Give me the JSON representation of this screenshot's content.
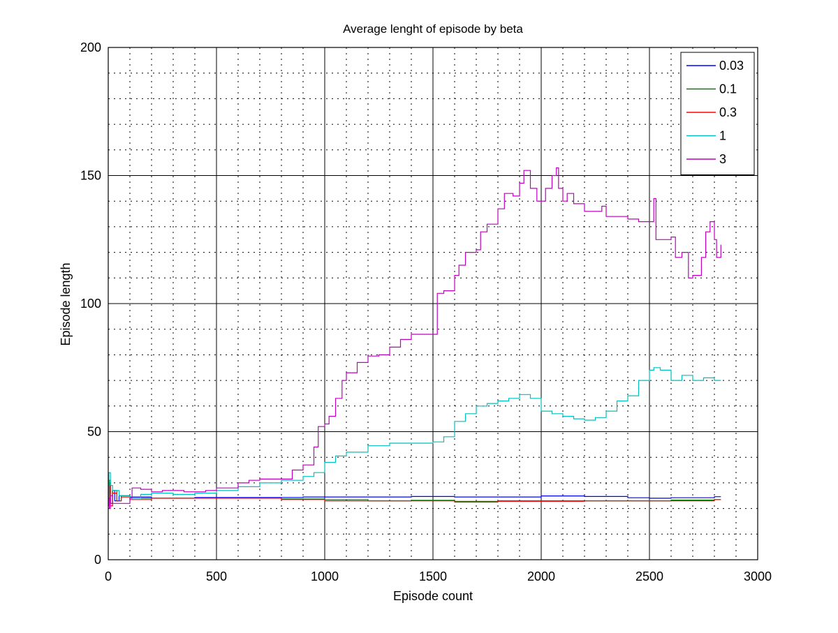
{
  "chart_data": {
    "type": "line",
    "title": "Average lenght of episode by beta",
    "xlabel": "Episode count",
    "ylabel": "Episode length",
    "xlim": [
      0,
      3000
    ],
    "ylim": [
      0,
      200
    ],
    "x_ticks": [
      0,
      500,
      1000,
      1500,
      2000,
      2500,
      3000
    ],
    "y_ticks": [
      0,
      50,
      100,
      150,
      200
    ],
    "x_tick_labels": [
      "0",
      "500",
      "1000",
      "1500",
      "2000",
      "2500",
      "3000"
    ],
    "y_tick_labels": [
      "0",
      "50",
      "100",
      "150",
      "200"
    ],
    "grid": true,
    "legend_position": "top-right",
    "series": [
      {
        "name": "0.03",
        "color": "#0000ff",
        "points": [
          [
            0,
            23
          ],
          [
            5,
            30
          ],
          [
            10,
            22
          ],
          [
            20,
            27
          ],
          [
            30,
            23
          ],
          [
            50,
            25
          ],
          [
            100,
            24.5
          ],
          [
            200,
            24
          ],
          [
            400,
            24.3
          ],
          [
            600,
            24.3
          ],
          [
            900,
            24.5
          ],
          [
            1200,
            24.5
          ],
          [
            1400,
            24.7
          ],
          [
            1600,
            24.5
          ],
          [
            1800,
            24.5
          ],
          [
            2000,
            24.9
          ],
          [
            2200,
            24.7
          ],
          [
            2400,
            24.2
          ],
          [
            2500,
            24
          ],
          [
            2600,
            24.2
          ],
          [
            2800,
            24.6
          ],
          [
            2830,
            24.6
          ]
        ]
      },
      {
        "name": "0.1",
        "color": "#008000",
        "points": [
          [
            0,
            26
          ],
          [
            5,
            31
          ],
          [
            10,
            22
          ],
          [
            20,
            27
          ],
          [
            40,
            23
          ],
          [
            60,
            25
          ],
          [
            100,
            24
          ],
          [
            200,
            24
          ],
          [
            400,
            24
          ],
          [
            600,
            24
          ],
          [
            800,
            23.7
          ],
          [
            1000,
            23.5
          ],
          [
            1100,
            23.5
          ],
          [
            1200,
            23
          ],
          [
            1400,
            23.2
          ],
          [
            1600,
            22.8
          ],
          [
            1800,
            23
          ],
          [
            2000,
            23
          ],
          [
            2200,
            23
          ],
          [
            2400,
            23
          ],
          [
            2600,
            23.3
          ],
          [
            2800,
            23.5
          ],
          [
            2830,
            23.5
          ]
        ]
      },
      {
        "name": "0.3",
        "color": "#ff0000",
        "points": [
          [
            0,
            22
          ],
          [
            5,
            29
          ],
          [
            10,
            21
          ],
          [
            20,
            26
          ],
          [
            40,
            23
          ],
          [
            60,
            24.5
          ],
          [
            100,
            23.5
          ],
          [
            200,
            24
          ],
          [
            400,
            24
          ],
          [
            600,
            24
          ],
          [
            800,
            23.5
          ],
          [
            1000,
            23
          ],
          [
            1200,
            23
          ],
          [
            1400,
            23
          ],
          [
            1600,
            22.5
          ],
          [
            1800,
            22.8
          ],
          [
            2000,
            22.8
          ],
          [
            2200,
            23
          ],
          [
            2400,
            23
          ],
          [
            2600,
            23
          ],
          [
            2800,
            23.5
          ],
          [
            2830,
            23.5
          ]
        ]
      },
      {
        "name": "1",
        "color": "#00bfbf",
        "points": [
          [
            0,
            21
          ],
          [
            3,
            34
          ],
          [
            10,
            29
          ],
          [
            20,
            27
          ],
          [
            50,
            25
          ],
          [
            100,
            24
          ],
          [
            150,
            25.5
          ],
          [
            200,
            26
          ],
          [
            300,
            25.5
          ],
          [
            400,
            26
          ],
          [
            500,
            27
          ],
          [
            600,
            28.5
          ],
          [
            700,
            30
          ],
          [
            800,
            31
          ],
          [
            900,
            32.5
          ],
          [
            950,
            34
          ],
          [
            1000,
            38
          ],
          [
            1050,
            40.5
          ],
          [
            1100,
            42
          ],
          [
            1200,
            44.5
          ],
          [
            1300,
            45.5
          ],
          [
            1400,
            45.5
          ],
          [
            1500,
            46
          ],
          [
            1550,
            48
          ],
          [
            1600,
            54
          ],
          [
            1650,
            57
          ],
          [
            1700,
            60
          ],
          [
            1750,
            61
          ],
          [
            1800,
            62
          ],
          [
            1850,
            63
          ],
          [
            1900,
            64.5
          ],
          [
            1950,
            63
          ],
          [
            2000,
            58
          ],
          [
            2050,
            57
          ],
          [
            2100,
            56
          ],
          [
            2150,
            55
          ],
          [
            2200,
            54.5
          ],
          [
            2250,
            55.5
          ],
          [
            2300,
            58
          ],
          [
            2350,
            62
          ],
          [
            2400,
            64
          ],
          [
            2450,
            70
          ],
          [
            2500,
            74
          ],
          [
            2520,
            75
          ],
          [
            2550,
            74
          ],
          [
            2600,
            70
          ],
          [
            2650,
            72
          ],
          [
            2700,
            70
          ],
          [
            2750,
            71
          ],
          [
            2800,
            70
          ],
          [
            2830,
            70
          ]
        ]
      },
      {
        "name": "3",
        "color": "#bf00bf",
        "points": [
          [
            0,
            24
          ],
          [
            5,
            20
          ],
          [
            10,
            25
          ],
          [
            20,
            22
          ],
          [
            50,
            22
          ],
          [
            100,
            24
          ],
          [
            110,
            28
          ],
          [
            150,
            27.5
          ],
          [
            200,
            26.5
          ],
          [
            250,
            27
          ],
          [
            300,
            27
          ],
          [
            350,
            26.5
          ],
          [
            400,
            26.5
          ],
          [
            450,
            27
          ],
          [
            500,
            28
          ],
          [
            600,
            30
          ],
          [
            650,
            31
          ],
          [
            700,
            31.5
          ],
          [
            800,
            31.5
          ],
          [
            850,
            35
          ],
          [
            900,
            37
          ],
          [
            950,
            44
          ],
          [
            970,
            52
          ],
          [
            1000,
            53
          ],
          [
            1020,
            56
          ],
          [
            1050,
            63
          ],
          [
            1080,
            70
          ],
          [
            1100,
            73
          ],
          [
            1150,
            77
          ],
          [
            1200,
            79.5
          ],
          [
            1250,
            80
          ],
          [
            1300,
            83
          ],
          [
            1350,
            86
          ],
          [
            1400,
            88
          ],
          [
            1500,
            88
          ],
          [
            1520,
            104
          ],
          [
            1550,
            105
          ],
          [
            1580,
            105
          ],
          [
            1600,
            111
          ],
          [
            1620,
            115
          ],
          [
            1650,
            120
          ],
          [
            1700,
            121
          ],
          [
            1720,
            128
          ],
          [
            1750,
            131
          ],
          [
            1800,
            137
          ],
          [
            1830,
            143
          ],
          [
            1870,
            142
          ],
          [
            1900,
            147
          ],
          [
            1920,
            152
          ],
          [
            1950,
            145
          ],
          [
            1980,
            140
          ],
          [
            2000,
            140
          ],
          [
            2020,
            145
          ],
          [
            2050,
            150
          ],
          [
            2070,
            153
          ],
          [
            2080,
            145
          ],
          [
            2100,
            140
          ],
          [
            2120,
            143
          ],
          [
            2150,
            139
          ],
          [
            2200,
            136
          ],
          [
            2250,
            136
          ],
          [
            2280,
            138
          ],
          [
            2300,
            134
          ],
          [
            2400,
            133
          ],
          [
            2450,
            132
          ],
          [
            2510,
            132
          ],
          [
            2520,
            141
          ],
          [
            2530,
            125
          ],
          [
            2600,
            126
          ],
          [
            2620,
            118
          ],
          [
            2650,
            120
          ],
          [
            2680,
            110
          ],
          [
            2700,
            111
          ],
          [
            2740,
            118
          ],
          [
            2760,
            128
          ],
          [
            2780,
            132
          ],
          [
            2800,
            125
          ],
          [
            2810,
            118
          ],
          [
            2830,
            123
          ]
        ]
      }
    ]
  }
}
